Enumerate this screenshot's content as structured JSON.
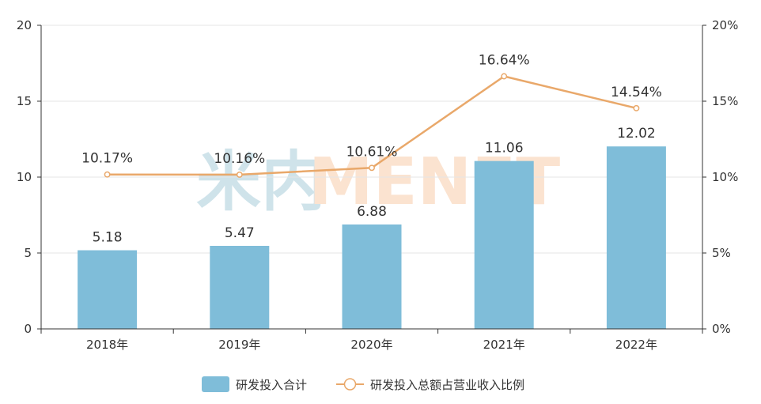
{
  "chart_data": {
    "type": "bar+line",
    "categories": [
      "2018年",
      "2019年",
      "2020年",
      "2021年",
      "2022年"
    ],
    "series": [
      {
        "name": "研发投入合计",
        "type": "bar",
        "axis": "left",
        "values": [
          5.18,
          5.47,
          6.88,
          11.06,
          12.02
        ],
        "labels": [
          "5.18",
          "5.47",
          "6.88",
          "11.06",
          "12.02"
        ],
        "color": "#7fbdd9"
      },
      {
        "name": "研发投入总额占营业收入比例",
        "type": "line",
        "axis": "right",
        "values": [
          10.17,
          10.16,
          10.61,
          16.64,
          14.54
        ],
        "labels": [
          "10.17%",
          "10.16%",
          "10.61%",
          "16.64%",
          "14.54%"
        ],
        "color": "#e9a86a"
      }
    ],
    "y_left": {
      "min": 0,
      "max": 20,
      "ticks": [
        "0",
        "5",
        "10",
        "15",
        "20"
      ]
    },
    "y_right": {
      "min": 0,
      "max": 20,
      "ticks": [
        "0%",
        "5%",
        "10%",
        "15%",
        "20%"
      ]
    },
    "grid": true,
    "legend_position": "bottom-center"
  },
  "watermark": {
    "left_text": "米内",
    "right_text": "MENET",
    "left_color": "#cfe3ea",
    "right_color": "#fbe3d0"
  }
}
